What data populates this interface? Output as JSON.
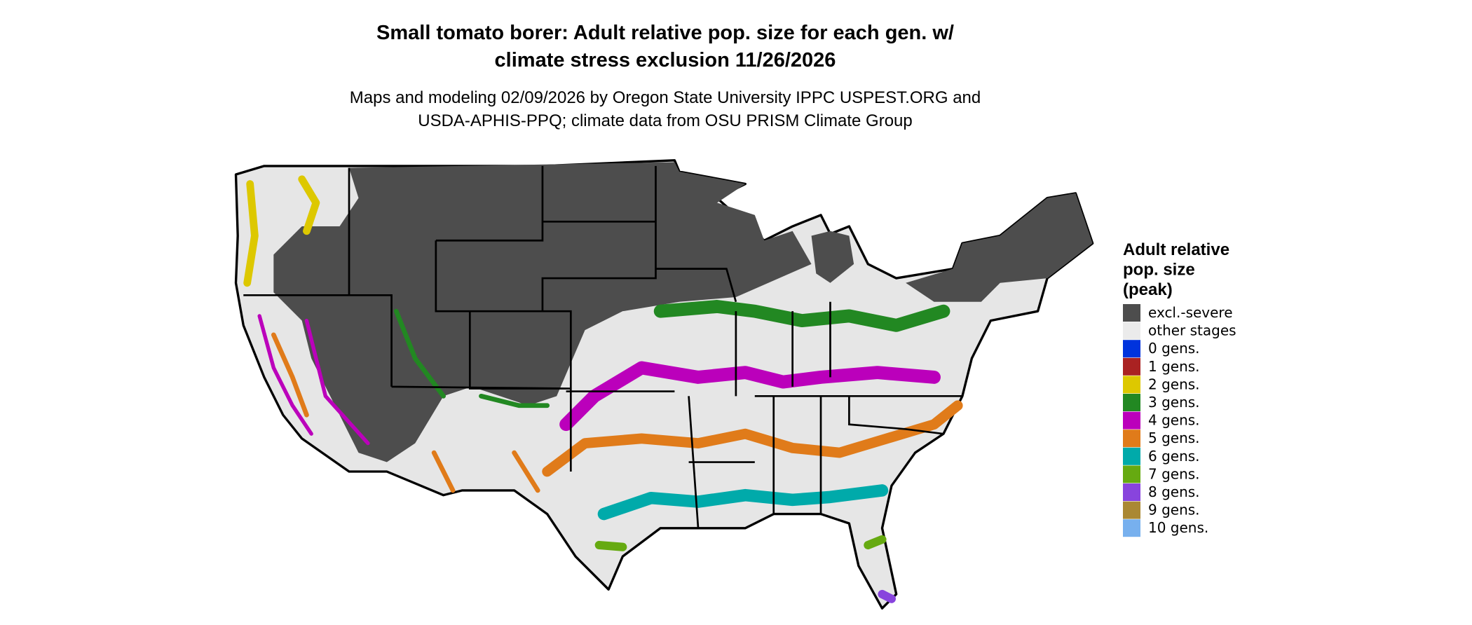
{
  "header": {
    "title": [
      "Small tomato borer: Adult relative pop. size for each gen. w/",
      "climate stress exclusion 11/26/2026"
    ],
    "subtitle": [
      "Maps and modeling 02/09/2026 by Oregon State University IPPC USPEST.ORG and",
      "USDA-APHIS-PPQ; climate data from OSU PRISM Climate Group"
    ]
  },
  "legend": {
    "title": [
      "Adult relative",
      "pop. size",
      "(peak)"
    ],
    "items": [
      {
        "label": "excl.-severe",
        "color": "#4d4d4d"
      },
      {
        "label": "other stages",
        "color": "#ebebeb"
      },
      {
        "label": "0 gens.",
        "color": "#0033dd"
      },
      {
        "label": "1 gens.",
        "color": "#aa2222"
      },
      {
        "label": "2 gens.",
        "color": "#ddc800"
      },
      {
        "label": "3 gens.",
        "color": "#228822"
      },
      {
        "label": "4 gens.",
        "color": "#bb00bb"
      },
      {
        "label": "5 gens.",
        "color": "#e07b1a"
      },
      {
        "label": "6 gens.",
        "color": "#00aaaa"
      },
      {
        "label": "7 gens.",
        "color": "#66aa11"
      },
      {
        "label": "8 gens.",
        "color": "#8844dd"
      },
      {
        "label": "9 gens.",
        "color": "#aa8833"
      },
      {
        "label": "10 gens.",
        "color": "#77b0ee"
      }
    ]
  }
}
